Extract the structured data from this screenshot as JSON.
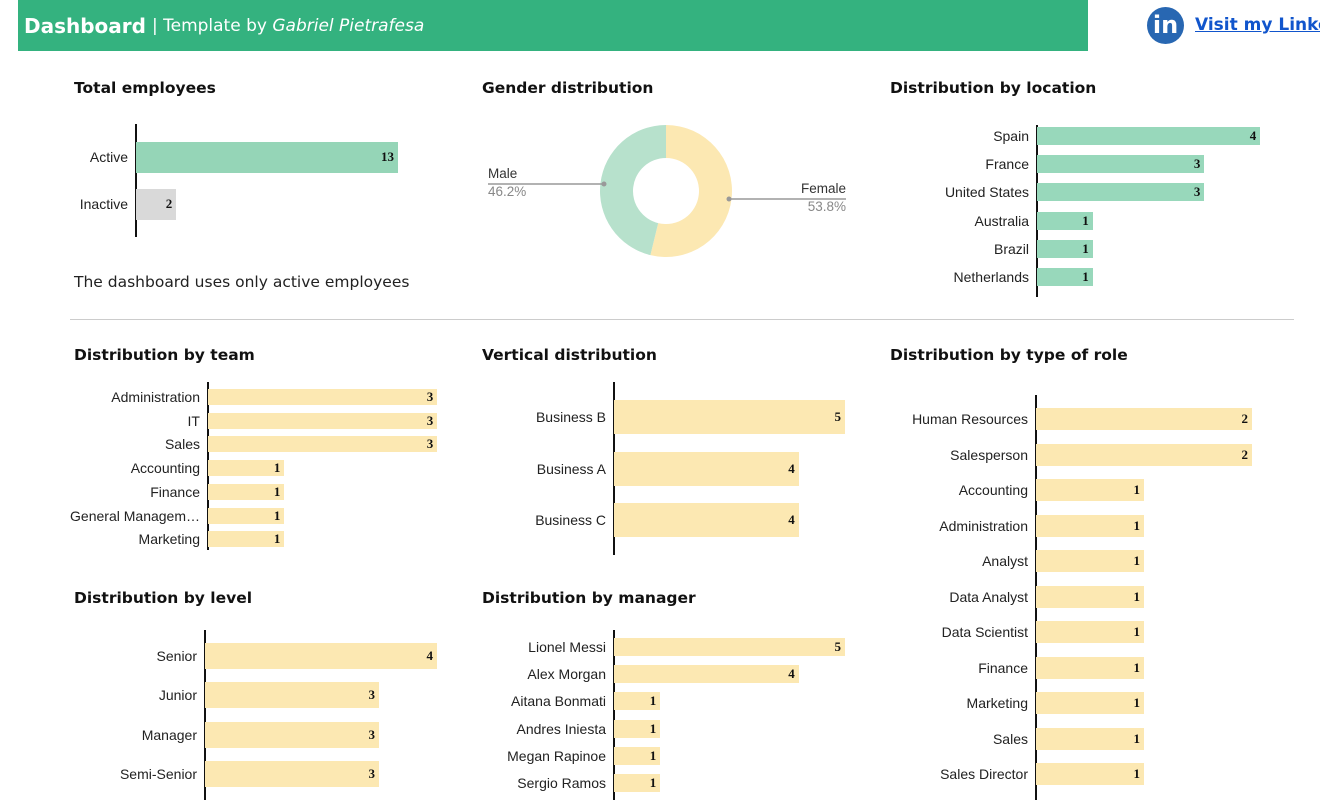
{
  "header": {
    "title": "Dashboard",
    "subtitle_prefix": "| Template by",
    "author": "Gabriel Pietrafesa",
    "linkedin_icon": "linkedin-icon",
    "linkedin_glyph": "in",
    "link_label": "Visit my Linked"
  },
  "note": "The dashboard uses only active employees",
  "colors": {
    "header": "#34b27f",
    "green": "#95d5b7",
    "grey": "#d9d9d9",
    "yellow": "#fce8b2",
    "male": "#b7e1cc",
    "female": "#fce8b2",
    "link": "#1155cc"
  },
  "chart_data": [
    {
      "id": "total",
      "type": "bar",
      "orientation": "horizontal",
      "title": "Total employees",
      "categories": [
        "Active",
        "Inactive"
      ],
      "values": [
        13,
        2
      ],
      "colors": [
        "#95d5b7",
        "#d9d9d9"
      ]
    },
    {
      "id": "gender",
      "type": "pie",
      "donut": true,
      "title": "Gender distribution",
      "categories": [
        "Male",
        "Female"
      ],
      "values": [
        46.2,
        53.8
      ],
      "labels": [
        "46.2%",
        "53.8%"
      ],
      "colors": [
        "#b7e1cc",
        "#fce8b2"
      ]
    },
    {
      "id": "location",
      "type": "bar",
      "orientation": "horizontal",
      "title": "Distribution by location",
      "categories": [
        "Spain",
        "France",
        "United States",
        "Australia",
        "Brazil",
        "Netherlands"
      ],
      "values": [
        4,
        3,
        3,
        1,
        1,
        1
      ],
      "colors": [
        "#98d8bb"
      ]
    },
    {
      "id": "team",
      "type": "bar",
      "orientation": "horizontal",
      "title": "Distribution by team",
      "categories": [
        "Administration",
        "IT",
        "Sales",
        "Accounting",
        "Finance",
        "General Managem…",
        "Marketing"
      ],
      "values": [
        3,
        3,
        3,
        1,
        1,
        1,
        1
      ],
      "colors": [
        "#fce8b2"
      ]
    },
    {
      "id": "vertical",
      "type": "bar",
      "orientation": "horizontal",
      "title": "Vertical distribution",
      "categories": [
        "Business B",
        "Business A",
        "Business C"
      ],
      "values": [
        5,
        4,
        4
      ],
      "colors": [
        "#fce8b2"
      ]
    },
    {
      "id": "role",
      "type": "bar",
      "orientation": "horizontal",
      "title": "Distribution by type of role",
      "categories": [
        "Human Resources",
        "Salesperson",
        "Accounting",
        "Administration",
        "Analyst",
        "Data Analyst",
        "Data Scientist",
        "Finance",
        "Marketing",
        "Sales",
        "Sales Director"
      ],
      "values": [
        2,
        2,
        1,
        1,
        1,
        1,
        1,
        1,
        1,
        1,
        1
      ],
      "colors": [
        "#fce8b2"
      ]
    },
    {
      "id": "level",
      "type": "bar",
      "orientation": "horizontal",
      "title": "Distribution by level",
      "categories": [
        "Senior",
        "Junior",
        "Manager",
        "Semi-Senior"
      ],
      "values": [
        4,
        3,
        3,
        3
      ],
      "colors": [
        "#fce8b2"
      ]
    },
    {
      "id": "manager",
      "type": "bar",
      "orientation": "horizontal",
      "title": "Distribution by manager",
      "categories": [
        "Lionel Messi",
        "Alex Morgan",
        "Aitana Bonmati",
        "Andres Iniesta",
        "Megan Rapinoe",
        "Sergio Ramos"
      ],
      "values": [
        5,
        4,
        1,
        1,
        1,
        1
      ],
      "colors": [
        "#fce8b2"
      ]
    }
  ]
}
